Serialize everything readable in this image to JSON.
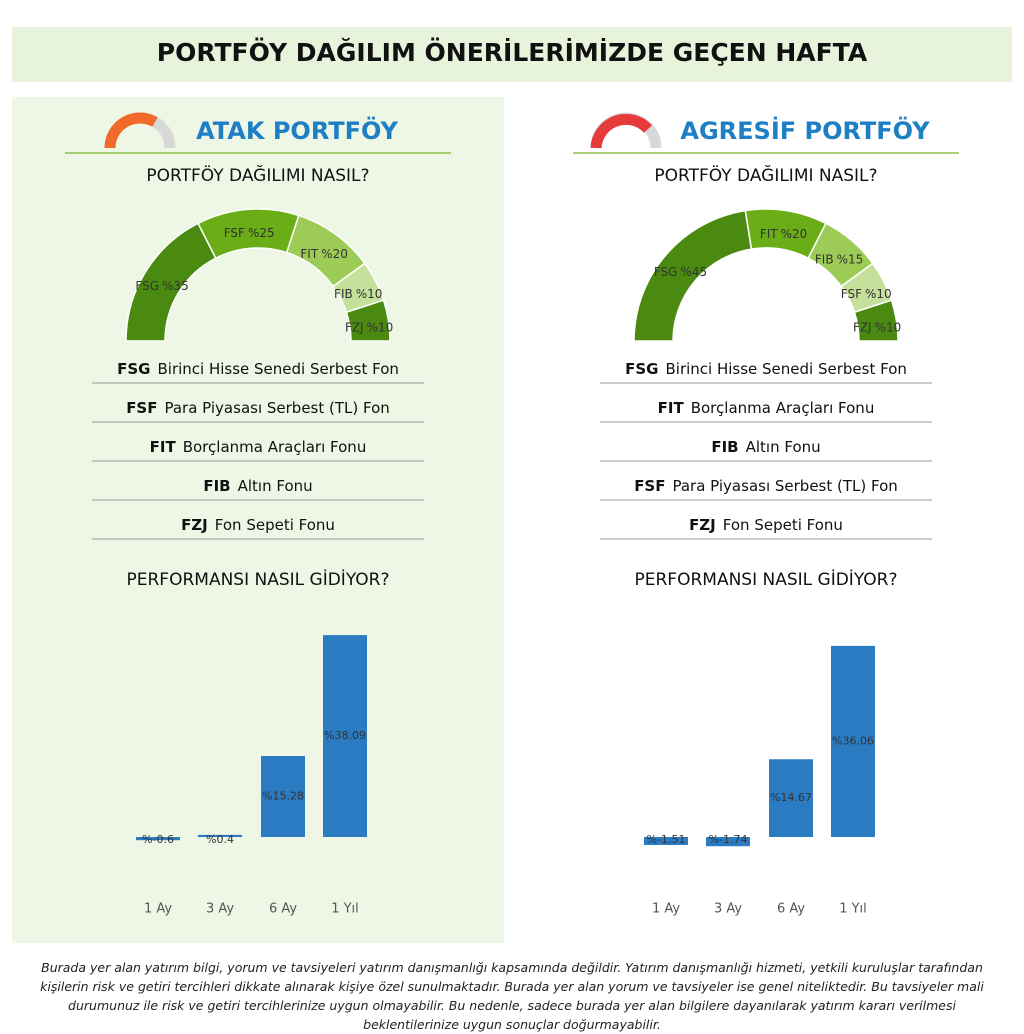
{
  "header": {
    "title": "PORTFÖY DAĞILIM ÖNERİLERİMİZDE GEÇEN HAFTA"
  },
  "panels": [
    {
      "title": "ATAK PORTFÖY",
      "funds": [
        {
          "code": "FSG",
          "name": "Birinci Hisse Senedi Serbest Fon"
        },
        {
          "code": "FSF",
          "name": "Para Piyasası Serbest (TL) Fon"
        },
        {
          "code": "FIT",
          "name": "Borçlanma Araçları Fonu"
        },
        {
          "code": "FIB",
          "name": "Altın Fonu"
        },
        {
          "code": "FZJ",
          "name": "Fon Sepeti Fonu"
        }
      ]
    },
    {
      "title": "AGRESİF PORTFÖY",
      "funds": [
        {
          "code": "FSG",
          "name": "Birinci Hisse Senedi Serbest Fon"
        },
        {
          "code": "FIT",
          "name": "Borçlanma Araçları Fonu"
        },
        {
          "code": "FIB",
          "name": "Altın Fonu"
        },
        {
          "code": "FSF",
          "name": "Para Piyasası Serbest (TL) Fon"
        },
        {
          "code": "FZJ",
          "name": "Fon Sepeti Fonu"
        }
      ]
    }
  ],
  "chart_data": [
    {
      "type": "pie",
      "title": "PORTFÖY DAĞILIMI NASIL?",
      "categories": [
        "FSG",
        "FSF",
        "FIT",
        "FIB",
        "FZJ"
      ],
      "values": [
        35,
        25,
        20,
        10,
        10
      ],
      "value_labels": [
        "%35",
        "%25",
        "%20",
        "%10",
        "%10"
      ],
      "colors": [
        "#4a8a10",
        "#6aad16",
        "#9ccc55",
        "#c5e09a",
        "#4a8a10"
      ]
    },
    {
      "type": "bar",
      "title": "PERFORMANSI NASIL GİDİYOR?",
      "categories": [
        "1 Ay",
        "3 Ay",
        "6 Ay",
        "1 Yıl"
      ],
      "values": [
        -0.6,
        0.4,
        15.28,
        38.09
      ],
      "value_labels": [
        "%-0.6",
        "%0.4",
        "%15.28",
        "%38.09"
      ],
      "color": "#2a7bc2"
    },
    {
      "type": "pie",
      "title": "PORTFÖY DAĞILIMI NASIL?",
      "categories": [
        "FSG",
        "FIT",
        "FIB",
        "FSF",
        "FZJ"
      ],
      "values": [
        45,
        20,
        15,
        10,
        10
      ],
      "value_labels": [
        "%45",
        "%20",
        "%15",
        "%10",
        "%10"
      ],
      "colors": [
        "#4a8a10",
        "#6aad16",
        "#9ccc55",
        "#c5e09a",
        "#4a8a10"
      ]
    },
    {
      "type": "bar",
      "title": "PERFORMANSI NASIL GİDİYOR?",
      "categories": [
        "1 Ay",
        "3 Ay",
        "6 Ay",
        "1 Yıl"
      ],
      "values": [
        -1.51,
        -1.74,
        14.67,
        36.06
      ],
      "value_labels": [
        "%-1.51",
        "%-1.74",
        "%14.67",
        "%36.06"
      ],
      "color": "#2a7bc2"
    }
  ],
  "disclaimer": "Burada yer alan yatırım bilgi, yorum ve tavsiyeleri yatırım danışmanlığı kapsamında değildir. Yatırım danışmanlığı hizmeti, yetkili kuruluşlar tarafından kişilerin risk ve getiri tercihleri dikkate alınarak kişiye özel sunulmaktadır. Burada yer alan yorum ve tavsiyeler ise genel niteliktedir. Bu tavsiyeler mali durumunuz ile risk ve getiri tercihlerinize uygun olmayabilir. Bu nedenle, sadece burada yer alan bilgilere dayanılarak yatırım kararı verilmesi beklentilerinize uygun sonuçlar doğurmayabilir."
}
